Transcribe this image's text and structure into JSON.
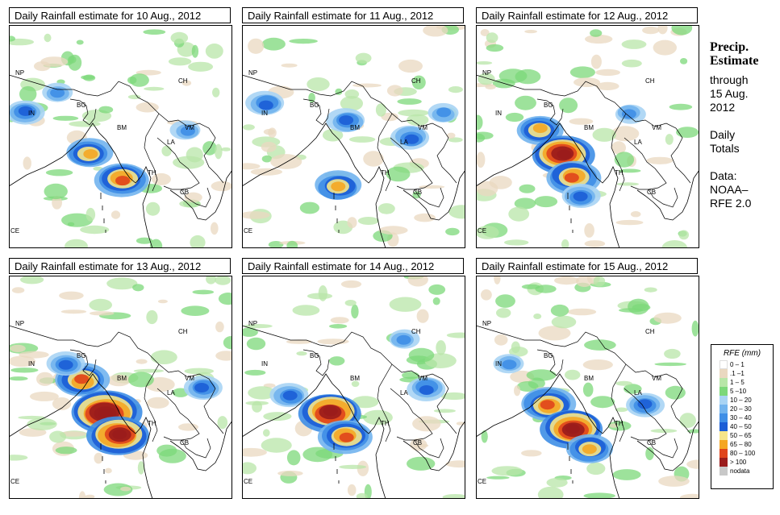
{
  "panels": [
    {
      "title": "Daily Rainfall estimate for  10 Aug., 2012"
    },
    {
      "title": "Daily Rainfall estimate for  11 Aug., 2012"
    },
    {
      "title": "Daily Rainfall estimate for  12 Aug., 2012"
    },
    {
      "title": "Daily Rainfall estimate for  13 Aug., 2012"
    },
    {
      "title": "Daily Rainfall estimate for  14 Aug., 2012"
    },
    {
      "title": "Daily Rainfall estimate for  15 Aug., 2012"
    }
  ],
  "country_labels": {
    "np": "NP",
    "ch": "CH",
    "in": "IN",
    "bg": "BG",
    "bm": "BM",
    "vm": "VM",
    "la": "LA",
    "th": "TH",
    "cb": "CB",
    "ce": "CE"
  },
  "sidebar": {
    "title_line1": "Precip.",
    "title_line2": "Estimate",
    "through": "through",
    "date_line1": "15 Aug.",
    "date_line2": "2012",
    "daily_line1": "Daily",
    "daily_line2": "Totals",
    "data_line1": "Data:",
    "data_line2": "NOAA–",
    "data_line3": "RFE 2.0"
  },
  "legend": {
    "title": "RFE (mm)",
    "items": [
      {
        "label": "0 – 1",
        "color": "#ffffff"
      },
      {
        "label": ".1 –1",
        "color": "#ead8c0"
      },
      {
        "label": "1 – 5",
        "color": "#b8e6a8"
      },
      {
        "label": "5 –10",
        "color": "#7cd87a"
      },
      {
        "label": "10 – 20",
        "color": "#a9d4f4"
      },
      {
        "label": "20 – 30",
        "color": "#72b4ee"
      },
      {
        "label": "30 – 40",
        "color": "#3e8ee6"
      },
      {
        "label": "40 – 50",
        "color": "#1c5ed6"
      },
      {
        "label": "50 – 65",
        "color": "#f6e58a"
      },
      {
        "label": "65 – 80",
        "color": "#f5a623"
      },
      {
        "label": "80 – 100",
        "color": "#e0441c"
      },
      {
        "label": "> 100",
        "color": "#9a1c1c"
      },
      {
        "label": "nodata",
        "color": "#c8c8c8"
      }
    ]
  }
}
